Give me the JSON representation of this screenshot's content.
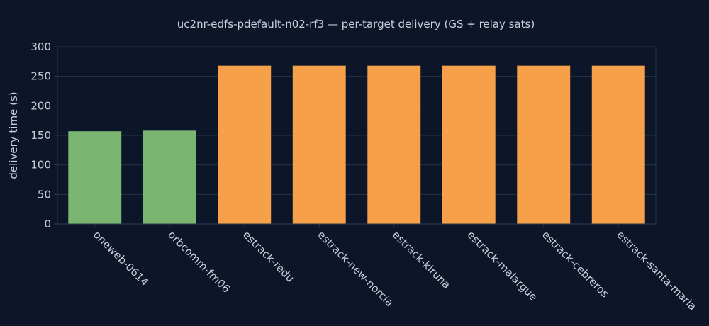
{
  "colors": {
    "background": "#0d1628",
    "grid": "#243247",
    "axis_line": "#2b3a52",
    "text": "#c8d0dc",
    "title_text": "#c8d0dc",
    "gs_bar": "#7ab571",
    "relay_bar": "#f7a04a"
  },
  "chart_data": {
    "type": "bar",
    "title": "uc2nr-edfs-pdefault-n02-rf3 — per-target delivery (GS + relay sats)",
    "xlabel": "",
    "ylabel": "delivery time (s)",
    "ylim": [
      0,
      300
    ],
    "yticks": [
      0,
      50,
      100,
      150,
      200,
      250,
      300
    ],
    "grid": true,
    "legend": "none",
    "categories": [
      "oneweb-0614",
      "orbcomm-fm06",
      "estrack-redu",
      "estrack-new-norcia",
      "estrack-kiruna",
      "estrack-malargue",
      "estrack-cebreros",
      "estrack-santa-maria"
    ],
    "values": [
      157,
      158,
      268,
      268,
      268,
      268,
      268,
      268
    ],
    "bar_colors": [
      "gs_bar",
      "gs_bar",
      "relay_bar",
      "relay_bar",
      "relay_bar",
      "relay_bar",
      "relay_bar",
      "relay_bar"
    ]
  }
}
